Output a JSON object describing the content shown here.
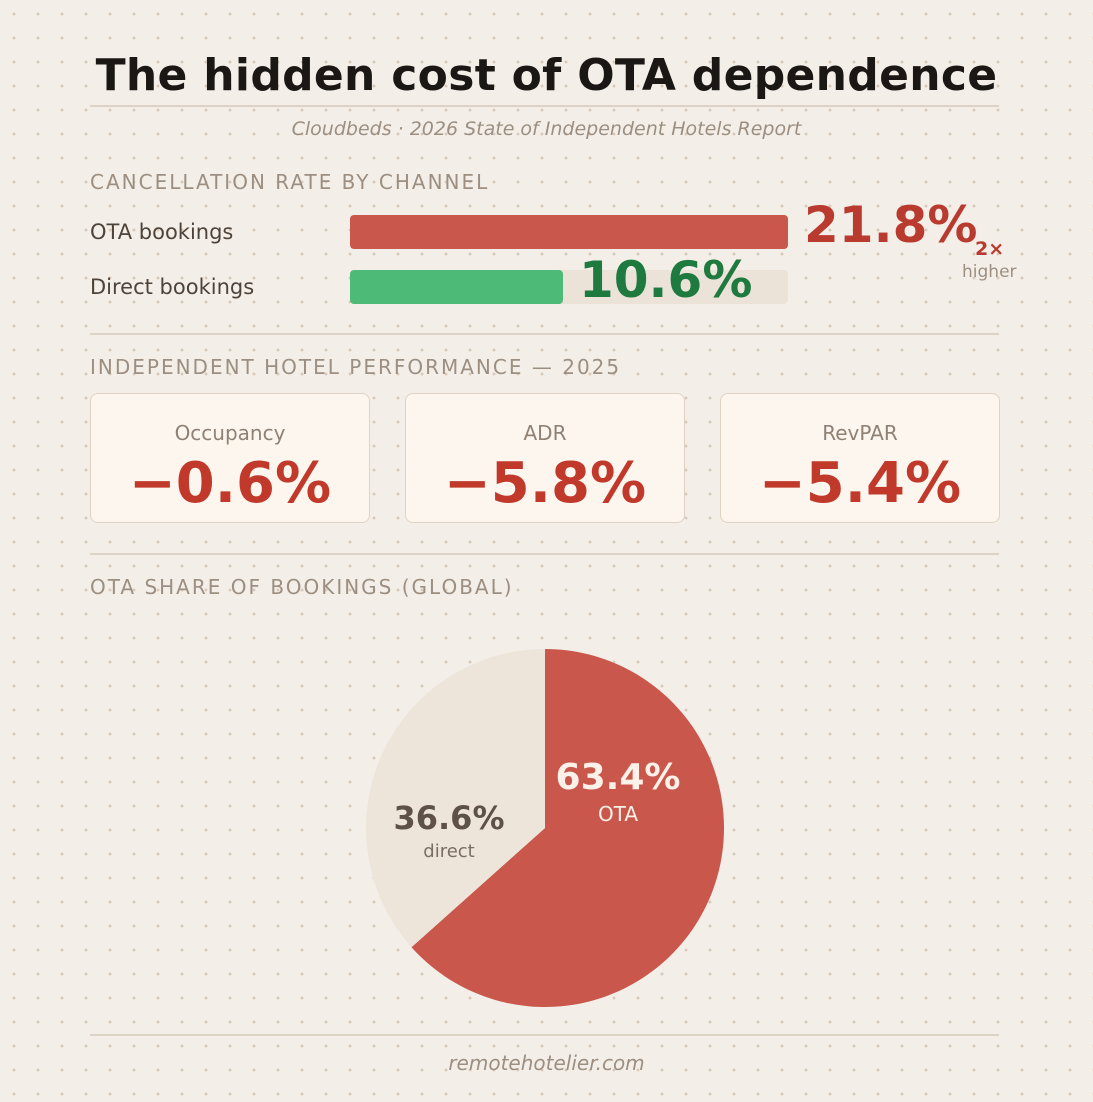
{
  "title": "The hidden cost of OTA dependence",
  "subtitle": "Cloudbeds · 2026 State of Independent Hotels Report",
  "colors": {
    "ota": "#c9574b",
    "direct": "#4dba78",
    "ota_text": "#b93a2e",
    "direct_text": "#1e7a3e",
    "negative": "#c0392b",
    "pie_direct": "#ede5da"
  },
  "cancellation": {
    "heading": "CANCELLATION RATE BY CHANNEL",
    "ota_label": "OTA bookings",
    "ota_value": "21.8%",
    "direct_label": "Direct bookings",
    "direct_value": "10.6%",
    "multiplier": "2×",
    "multiplier_note": "higher"
  },
  "performance": {
    "heading": "INDEPENDENT HOTEL PERFORMANCE — 2025",
    "cards": [
      {
        "label": "Occupancy",
        "value": "−0.6%"
      },
      {
        "label": "ADR",
        "value": "−5.8%"
      },
      {
        "label": "RevPAR",
        "value": "−5.4%"
      }
    ]
  },
  "share": {
    "heading": "OTA SHARE OF BOOKINGS (GLOBAL)",
    "ota_value": "63.4%",
    "ota_label": "OTA",
    "direct_value": "36.6%",
    "direct_label": "direct"
  },
  "footer": "remotehotelier.com",
  "chart_data": [
    {
      "type": "bar",
      "orientation": "horizontal",
      "title": "CANCELLATION RATE BY CHANNEL",
      "categories": [
        "OTA bookings",
        "Direct bookings"
      ],
      "values": [
        21.8,
        10.6
      ],
      "unit": "%",
      "xlim": [
        0,
        21.8
      ],
      "annotation": "2× higher"
    },
    {
      "type": "table",
      "title": "INDEPENDENT HOTEL PERFORMANCE — 2025",
      "categories": [
        "Occupancy",
        "ADR",
        "RevPAR"
      ],
      "values": [
        -0.6,
        -5.8,
        -5.4
      ],
      "unit": "%"
    },
    {
      "type": "pie",
      "title": "OTA SHARE OF BOOKINGS (GLOBAL)",
      "categories": [
        "OTA",
        "direct"
      ],
      "values": [
        63.4,
        36.6
      ],
      "unit": "%"
    }
  ]
}
